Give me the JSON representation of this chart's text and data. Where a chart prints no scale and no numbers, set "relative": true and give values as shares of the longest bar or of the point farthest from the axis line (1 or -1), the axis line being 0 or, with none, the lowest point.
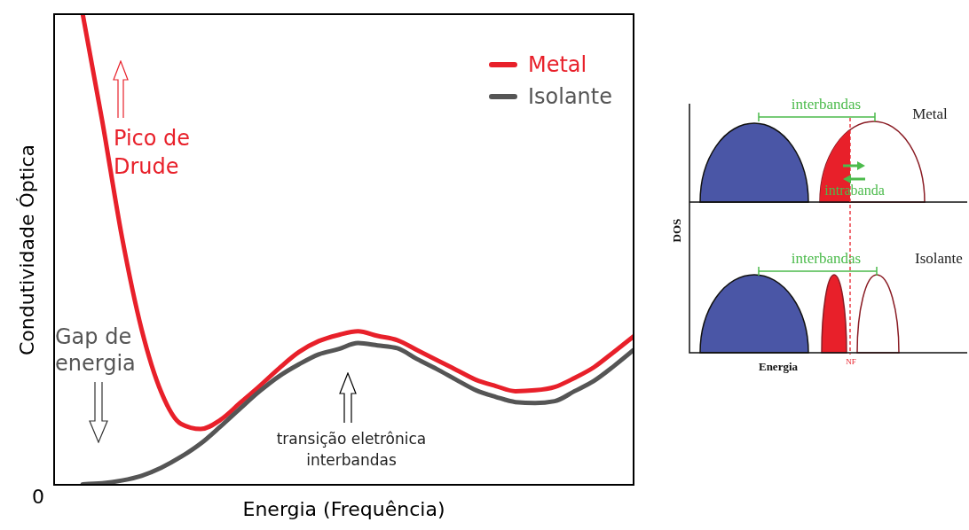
{
  "chart_data": [
    {
      "type": "line",
      "relative": true,
      "xlabel": "Energia (Frequência)",
      "ylabel": "Condutividade Óptica",
      "categories": [
        null,
        null,
        null,
        null,
        null,
        null,
        null,
        null,
        null,
        null,
        null,
        null,
        null,
        null,
        null,
        null,
        null,
        null,
        null,
        null,
        null,
        null,
        null,
        null,
        null,
        null,
        null,
        null,
        null
      ],
      "series": [
        {
          "name": "Metal",
          "color": "#e8202a",
          "values": [
            1.0,
            0.772,
            0.527,
            0.331,
            0.198,
            0.131,
            0.12,
            0.139,
            0.175,
            0.211,
            0.249,
            0.283,
            0.306,
            0.319,
            0.327,
            0.317,
            0.308,
            0.287,
            0.266,
            0.245,
            0.224,
            0.211,
            0.2,
            0.202,
            0.209,
            0.228,
            0.251,
            0.283,
            0.316
          ]
        },
        {
          "name": "Isolante",
          "color": "#555555",
          "values": [
            0.003,
            0.005,
            0.011,
            0.021,
            0.038,
            0.061,
            0.089,
            0.125,
            0.163,
            0.2,
            0.232,
            0.257,
            0.278,
            0.289,
            0.302,
            0.297,
            0.291,
            0.268,
            0.247,
            0.224,
            0.202,
            0.188,
            0.177,
            0.175,
            0.179,
            0.2,
            0.222,
            0.253,
            0.287
          ]
        }
      ],
      "legend": "top right",
      "annotations": [
        "0",
        "Pico de Drude",
        "Gap de energia",
        "transição eletrônica interbandas"
      ]
    },
    {
      "type": "other",
      "xlabel": "Energia",
      "ylabel": "DOS",
      "annotations": [
        "interbandas",
        "Metal",
        "intrabanda",
        "interbandas",
        "Isolante",
        "NF"
      ]
    }
  ]
}
